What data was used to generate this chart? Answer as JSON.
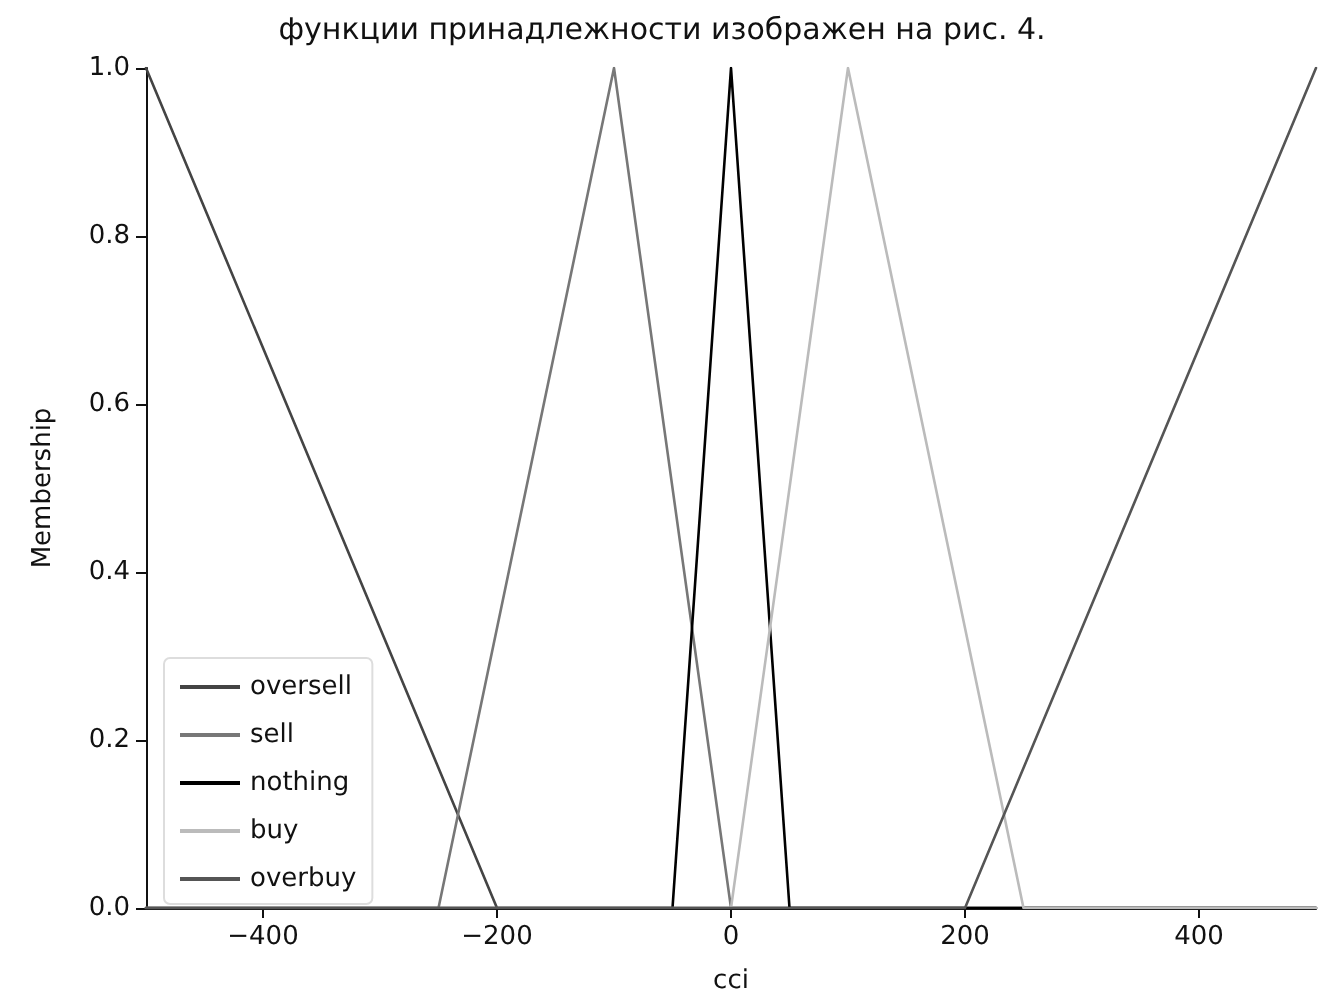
{
  "chart_data": {
    "type": "line",
    "title": "функции принадлежности изображен на рис. 4.",
    "xlabel": "cci",
    "ylabel": "Membership",
    "series": [
      {
        "name": "oversell",
        "color": "#444444",
        "x": [
          -500,
          -200,
          500
        ],
        "values": [
          1,
          0,
          0
        ]
      },
      {
        "name": "sell",
        "color": "#777777",
        "x": [
          -500,
          -250,
          -100,
          0,
          500
        ],
        "values": [
          0,
          0,
          1,
          0,
          0
        ]
      },
      {
        "name": "nothing",
        "color": "#000000",
        "x": [
          -500,
          -50,
          0,
          50,
          500
        ],
        "values": [
          0,
          0,
          1,
          0,
          0
        ]
      },
      {
        "name": "buy",
        "color": "#bbbbbb",
        "x": [
          -500,
          0,
          100,
          250,
          500
        ],
        "values": [
          0,
          0,
          1,
          0,
          0
        ]
      },
      {
        "name": "overbuy",
        "color": "#555555",
        "x": [
          -500,
          200,
          500
        ],
        "values": [
          0,
          0,
          1
        ]
      }
    ],
    "xlim": [
      -500,
      500
    ],
    "xticks": [
      -400,
      -200,
      0,
      200,
      400
    ],
    "ylim": [
      0,
      1
    ],
    "yticks": [
      {
        "value": 0,
        "label": "0.0"
      },
      0.2,
      0.4,
      0.6,
      0.8,
      {
        "value": 1,
        "label": "1.0"
      }
    ],
    "legend": "bottom left",
    "grid": false,
    "marker": "none",
    "line_style": "solid"
  }
}
